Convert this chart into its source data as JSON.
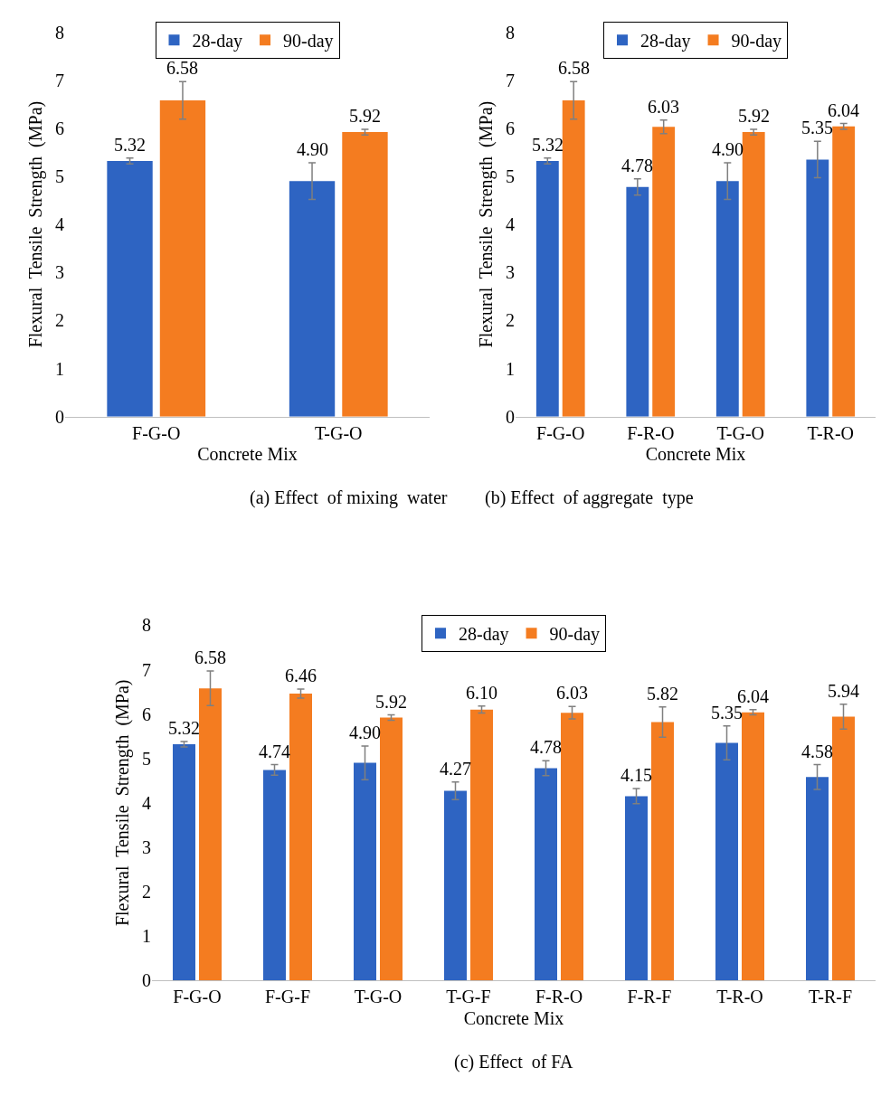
{
  "chart_data": [
    {
      "type": "bar",
      "xlabel": "Concrete Mix",
      "ylabel": "Flexural  Tensile  Strength  (MPa)",
      "categories": [
        "F-G-O",
        "T-G-O"
      ],
      "ylim": [
        0,
        8
      ],
      "yticks": [
        0,
        1,
        2,
        3,
        4,
        5,
        6,
        7,
        8
      ],
      "legend": "top",
      "annotations": [
        "(a) Effect  of mixing  water"
      ],
      "series": [
        {
          "name": "28-day",
          "color": "#2e64c2",
          "values": [
            5.32,
            4.9
          ],
          "errors": [
            0.06,
            0.38
          ],
          "value_labels": [
            "5.32",
            "4.90"
          ]
        },
        {
          "name": "90-day",
          "color": "#f47c20",
          "values": [
            6.58,
            5.92
          ],
          "errors": [
            0.39,
            0.06
          ],
          "value_labels": [
            "6.58",
            "5.92"
          ]
        }
      ]
    },
    {
      "type": "bar",
      "xlabel": "Concrete Mix",
      "ylabel": "Flexural  Tensile  Strength  (MPa)",
      "categories": [
        "F-G-O",
        "F-R-O",
        "T-G-O",
        "T-R-O"
      ],
      "ylim": [
        0,
        8
      ],
      "yticks": [
        0,
        1,
        2,
        3,
        4,
        5,
        6,
        7,
        8
      ],
      "legend": "top",
      "annotations": [
        "(b) Effect  of aggregate  type"
      ],
      "series": [
        {
          "name": "28-day",
          "color": "#2e64c2",
          "values": [
            5.32,
            4.78,
            4.9,
            5.35
          ],
          "errors": [
            0.06,
            0.17,
            0.38,
            0.38
          ],
          "value_labels": [
            "5.32",
            "4.78",
            "4.90",
            "5.35"
          ]
        },
        {
          "name": "90-day",
          "color": "#f47c20",
          "values": [
            6.58,
            6.03,
            5.92,
            6.04
          ],
          "errors": [
            0.39,
            0.14,
            0.06,
            0.06
          ],
          "value_labels": [
            "6.58",
            "6.03",
            "5.92",
            "6.04"
          ]
        }
      ]
    },
    {
      "type": "bar",
      "xlabel": "Concrete Mix",
      "ylabel": "Flexural  Tensile  Strength  (MPa)",
      "categories": [
        "F-G-O",
        "F-G-F",
        "T-G-O",
        "T-G-F",
        "F-R-O",
        "F-R-F",
        "T-R-O",
        "T-R-F"
      ],
      "ylim": [
        0,
        8
      ],
      "yticks": [
        0,
        1,
        2,
        3,
        4,
        5,
        6,
        7,
        8
      ],
      "legend": "top",
      "annotations": [
        "(c) Effect  of FA"
      ],
      "series": [
        {
          "name": "28-day",
          "color": "#2e64c2",
          "values": [
            5.32,
            4.74,
            4.9,
            4.27,
            4.78,
            4.15,
            5.35,
            4.58
          ],
          "errors": [
            0.06,
            0.12,
            0.38,
            0.2,
            0.17,
            0.17,
            0.38,
            0.28
          ],
          "value_labels": [
            "5.32",
            "4.74",
            "4.90",
            "4.27",
            "4.78",
            "4.15",
            "5.35",
            "4.58"
          ]
        },
        {
          "name": "90-day",
          "color": "#f47c20",
          "values": [
            6.58,
            6.46,
            5.92,
            6.1,
            6.03,
            5.82,
            6.04,
            5.94
          ],
          "errors": [
            0.39,
            0.1,
            0.06,
            0.08,
            0.14,
            0.34,
            0.06,
            0.28
          ],
          "value_labels": [
            "6.58",
            "6.46",
            "5.92",
            "6.10",
            "6.03",
            "5.82",
            "6.04",
            "5.94"
          ]
        }
      ]
    }
  ]
}
